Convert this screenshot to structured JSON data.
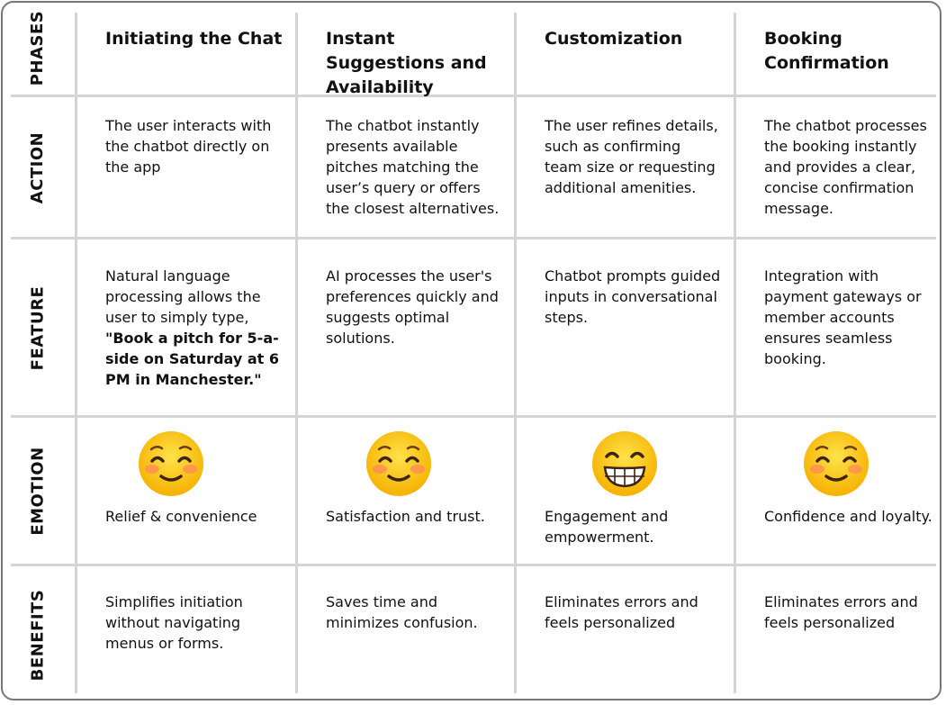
{
  "rows": [
    {
      "label": "PHASES",
      "cells": [
        "Initiating the Chat",
        "Instant Suggestions and Availability",
        "Customization",
        "Booking Confirmation"
      ]
    },
    {
      "label": "ACTION",
      "cells": [
        "The user interacts with the chatbot directly on the app",
        "The chatbot instantly presents available pitches matching the user’s query or offers the closest alternatives.",
        "The user refines details, such as confirming team size or requesting additional amenities.",
        "The chatbot processes the booking instantly and provides a clear, concise confirmation message."
      ]
    },
    {
      "label": "FEATURE",
      "cells": [
        {
          "text": "Natural language processing allows the user to simply type,",
          "bold": "\"Book a pitch for 5-a-side on Saturday at 6 PM in Manchester.\""
        },
        "AI processes the user's preferences quickly and suggests optimal solutions.",
        "Chatbot prompts guided inputs in conversational steps.",
        "Integration with payment gateways or member accounts ensures seamless booking."
      ]
    },
    {
      "label": "EMOTION",
      "cells": [
        "Relief & convenience",
        "Satisfaction and trust.",
        "Engagement and empowerment.",
        "Confidence and loyalty."
      ]
    },
    {
      "label": "BENEFITS",
      "cells": [
        "Simplifies initiation without navigating menus or forms.",
        "Saves time and minimizes confusion.",
        "Eliminates errors and feels personalized",
        "Eliminates errors and feels personalized"
      ]
    }
  ]
}
